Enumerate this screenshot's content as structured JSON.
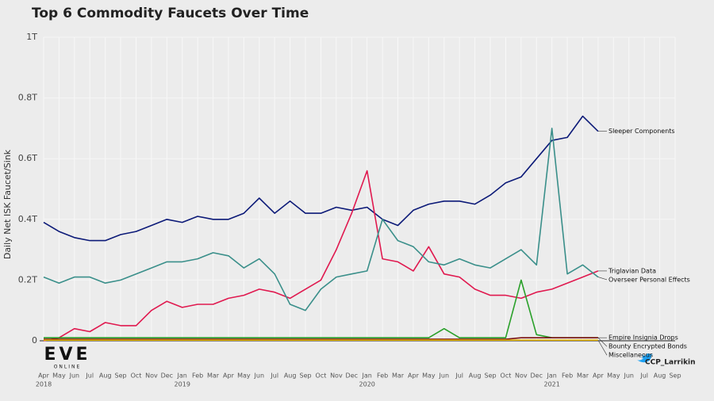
{
  "chart_data": {
    "type": "line",
    "title": "Top 6 Commodity Faucets Over Time",
    "y_label": "Daily Net ISK Faucet/Sink",
    "credit": "CCP_Larrikin",
    "logo": "EVE",
    "logo_sub": "ONLINE",
    "categories": [
      "Apr",
      "May",
      "Jun",
      "Jul",
      "Aug",
      "Sep",
      "Oct",
      "Nov",
      "Dec",
      "Jan",
      "Feb",
      "Mar",
      "Apr",
      "May",
      "Jun",
      "Jul",
      "Aug",
      "Sep",
      "Oct",
      "Nov",
      "Dec",
      "Jan",
      "Feb",
      "Mar",
      "Apr",
      "May",
      "Jun",
      "Jul",
      "Aug",
      "Sep",
      "Oct",
      "Nov",
      "Dec",
      "Jan",
      "Feb",
      "Mar",
      "Apr",
      "May",
      "Jun",
      "Jul",
      "Aug",
      "Sep"
    ],
    "years": [
      "2018",
      null,
      null,
      null,
      null,
      null,
      null,
      null,
      null,
      "2019",
      null,
      null,
      null,
      null,
      null,
      null,
      null,
      null,
      null,
      null,
      null,
      "2020",
      null,
      null,
      null,
      null,
      null,
      null,
      null,
      null,
      null,
      null,
      null,
      "2021",
      null,
      null,
      null,
      null,
      null,
      null,
      null,
      null
    ],
    "ylim": [
      0,
      1
    ],
    "yticks": [
      0,
      {
        "value": 0.2,
        "label": "0.2T"
      },
      {
        "value": 0.4,
        "label": "0.4T"
      },
      {
        "value": 0.6,
        "label": "0.6T"
      },
      {
        "value": 0.8,
        "label": "0.8T"
      },
      {
        "value": 1,
        "label": "1T"
      }
    ],
    "grid": true,
    "series": [
      {
        "name": "Sleeper Components",
        "color": "#0c1a78",
        "values": [
          0.39,
          0.36,
          0.34,
          0.33,
          0.33,
          0.35,
          0.36,
          0.38,
          0.4,
          0.39,
          0.41,
          0.4,
          0.4,
          0.42,
          0.47,
          0.42,
          0.46,
          0.42,
          0.42,
          0.44,
          0.43,
          0.44,
          0.4,
          0.38,
          0.43,
          0.45,
          0.46,
          0.46,
          0.45,
          0.48,
          0.52,
          0.54,
          0.6,
          0.66,
          0.67,
          0.74,
          0.69,
          null,
          null,
          null,
          null,
          null
        ]
      },
      {
        "name": "Triglavian Data",
        "color": "#e0194f",
        "values": [
          0.0,
          0.01,
          0.04,
          0.03,
          0.06,
          0.05,
          0.05,
          0.1,
          0.13,
          0.11,
          0.12,
          0.12,
          0.14,
          0.15,
          0.17,
          0.16,
          0.14,
          0.17,
          0.2,
          0.3,
          0.42,
          0.56,
          0.27,
          0.26,
          0.23,
          0.31,
          0.22,
          0.21,
          0.17,
          0.15,
          0.15,
          0.14,
          0.16,
          0.17,
          0.19,
          0.21,
          0.23,
          null,
          null,
          null,
          null,
          null
        ]
      },
      {
        "name": "Overseer Personal Effects",
        "color": "#3a8f8a",
        "values": [
          0.21,
          0.19,
          0.21,
          0.21,
          0.19,
          0.2,
          0.22,
          0.24,
          0.26,
          0.26,
          0.27,
          0.29,
          0.28,
          0.24,
          0.27,
          0.22,
          0.12,
          0.1,
          0.17,
          0.21,
          0.22,
          0.23,
          0.4,
          0.33,
          0.31,
          0.26,
          0.25,
          0.27,
          0.25,
          0.24,
          0.27,
          0.3,
          0.25,
          0.7,
          0.22,
          0.25,
          0.21,
          null,
          null,
          null,
          null,
          null
        ]
      },
      {
        "name": "Empire Insignia Drops",
        "color": "#2aa02a",
        "values": [
          0.01,
          0.01,
          0.01,
          0.01,
          0.01,
          0.01,
          0.01,
          0.01,
          0.01,
          0.01,
          0.01,
          0.01,
          0.01,
          0.01,
          0.01,
          0.01,
          0.01,
          0.01,
          0.01,
          0.01,
          0.01,
          0.01,
          0.01,
          0.01,
          0.01,
          0.01,
          0.04,
          0.01,
          0.01,
          0.01,
          0.01,
          0.2,
          0.02,
          0.01,
          0.01,
          0.01,
          0.01,
          null,
          null,
          null,
          null,
          null
        ]
      },
      {
        "name": "Bounty Encrypted Bonds",
        "color": "#7a1010",
        "values": [
          0.005,
          0.005,
          0.005,
          0.005,
          0.005,
          0.005,
          0.005,
          0.005,
          0.005,
          0.005,
          0.005,
          0.005,
          0.005,
          0.005,
          0.005,
          0.005,
          0.005,
          0.005,
          0.005,
          0.005,
          0.005,
          0.005,
          0.005,
          0.005,
          0.005,
          0.005,
          0.005,
          0.005,
          0.005,
          0.005,
          0.005,
          0.01,
          0.01,
          0.01,
          0.01,
          0.01,
          0.01,
          null,
          null,
          null,
          null,
          null
        ]
      },
      {
        "name": "Miscellaneous",
        "color": "#e0b000",
        "values": [
          0.002,
          0.002,
          0.002,
          0.002,
          0.002,
          0.002,
          0.002,
          0.002,
          0.002,
          0.002,
          0.002,
          0.002,
          0.002,
          0.002,
          0.002,
          0.002,
          0.002,
          0.002,
          0.002,
          0.002,
          0.002,
          0.002,
          0.002,
          0.002,
          0.002,
          0.002,
          0.002,
          0.002,
          0.002,
          0.002,
          0.002,
          0.002,
          0.002,
          0.002,
          0.002,
          0.002,
          0.002,
          null,
          null,
          null,
          null,
          null
        ]
      }
    ]
  }
}
